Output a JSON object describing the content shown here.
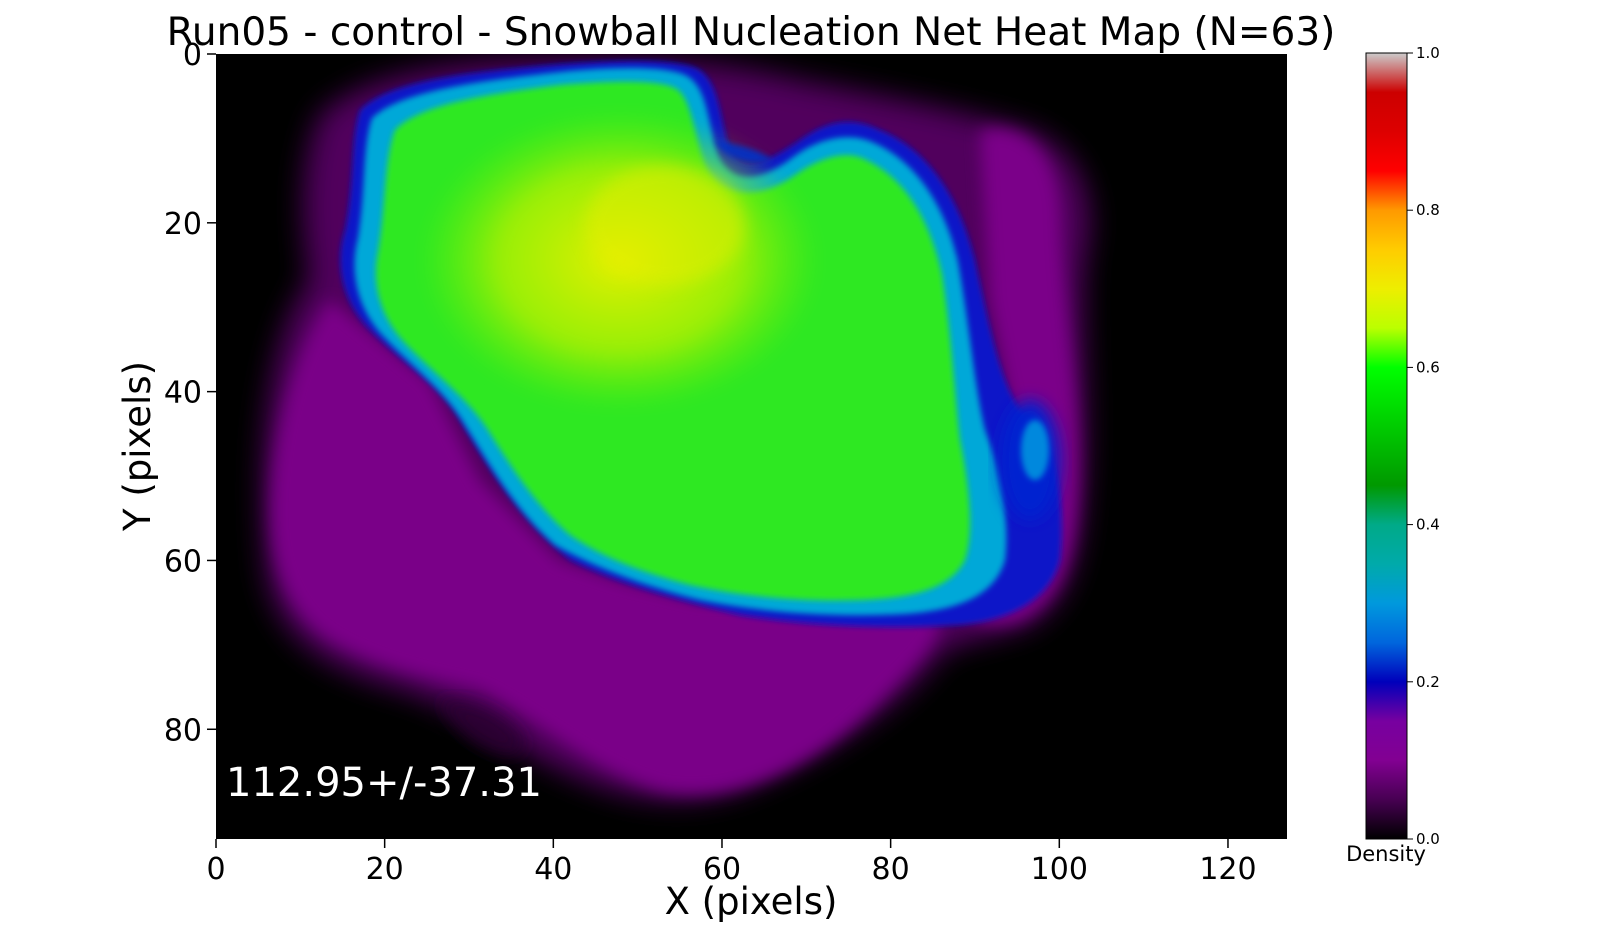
{
  "chart_data": {
    "type": "heatmap",
    "title": "Run05 - control - Snowball Nucleation Net Heat Map (N=63)",
    "xlabel": "X (pixels)",
    "ylabel": "Y (pixels)",
    "xlim": [
      0,
      127
    ],
    "ylim": [
      93,
      0
    ],
    "x_ticks": [
      0,
      20,
      40,
      60,
      80,
      100,
      120
    ],
    "y_ticks": [
      0,
      20,
      40,
      60,
      80
    ],
    "colormap": "nipy_spectral",
    "colorbar": {
      "label": "Density",
      "range": [
        0.0,
        1.0
      ],
      "ticks": [
        "0.0",
        "0.2",
        "0.4",
        "0.6",
        "0.8",
        "1.0"
      ]
    },
    "annotation": "112.95+/-37.31",
    "grid": false,
    "background_color": "#000000"
  }
}
